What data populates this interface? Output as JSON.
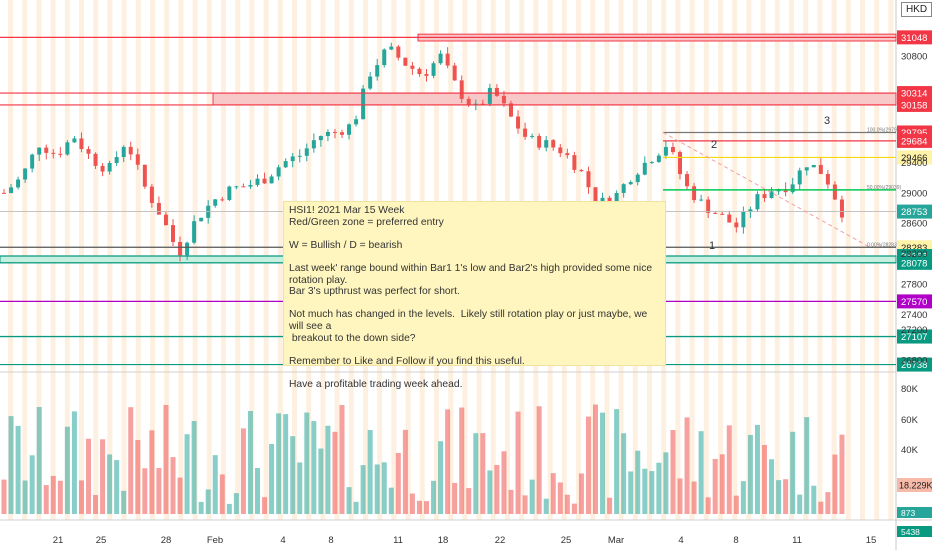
{
  "currency": "HKD",
  "note": {
    "lines": [
      "HSI1! 2021 Mar 15 Week",
      "Red/Green zone = preferred entry",
      "",
      "W = Bullish / D = bearish",
      "",
      "Last week' range bound within Bar1 1's low and Bar2's high provided some nice rotation play.",
      "Bar 3's upthrust was perfect for short.",
      "",
      "Not much has changed in the levels.  Likely still rotation play or just maybe, we will see a",
      " breakout to the down side?",
      "",
      "Remember to Like and Follow if you find this useful.",
      "",
      "Have a profitable trading week ahead."
    ]
  },
  "colors": {
    "up": "#26a69a",
    "down": "#ef5350",
    "session_band": "#fde3c8",
    "note_bg": "#fff6bf",
    "red_level": "#f23645",
    "green_level": "#089981",
    "yellow_level": "#f5d90a",
    "purple_level": "#b000c8"
  },
  "chart_data": {
    "type": "candlestick",
    "symbol": "HSI1!",
    "y_axis": {
      "ticks": [
        30800,
        29400,
        29000,
        28600,
        28200,
        27800,
        27400,
        27200,
        26800
      ],
      "range": [
        26640,
        31540
      ]
    },
    "volume_axis": {
      "ticks": [
        "80K",
        "60K",
        "40K"
      ],
      "value_label": "18.229K",
      "small_labels": [
        "873",
        "5438"
      ]
    },
    "x_axis": {
      "ticks": [
        "21",
        "25",
        "28",
        "Feb",
        "4",
        "8",
        "11",
        "18",
        "22",
        "25",
        "Mar",
        "4",
        "8",
        "11",
        "15"
      ]
    },
    "price_levels": [
      {
        "value": 31048,
        "label": "31048",
        "kind": "resistance"
      },
      {
        "value": 30314,
        "label": "30314",
        "kind": "resistance"
      },
      {
        "value": 30158,
        "label": "30158",
        "kind": "resistance"
      },
      {
        "value": 29795,
        "label": "29795",
        "kind": "range"
      },
      {
        "value": 29684,
        "label": "29684",
        "kind": "resistance"
      },
      {
        "value": 29466,
        "label": "29466",
        "kind": "level"
      },
      {
        "value": 28753,
        "label": "28753",
        "kind": "last"
      },
      {
        "value": 28283,
        "label": "28283",
        "kind": "level"
      },
      {
        "value": 28168,
        "label": "28168",
        "kind": "support"
      },
      {
        "value": 28078,
        "label": "28078",
        "kind": "support"
      },
      {
        "value": 27570,
        "label": "27570",
        "kind": "level"
      },
      {
        "value": 27108,
        "label": "27108",
        "kind": "support"
      },
      {
        "value": 27107,
        "label": "27107",
        "kind": "support"
      },
      {
        "value": 26738,
        "label": "26738",
        "kind": "support"
      }
    ],
    "fib_labels": [
      "100.0%(29795)",
      "50.00%(29039)",
      "0.00%(28283)"
    ],
    "swing_labels": [
      {
        "text": "1",
        "bar": 5
      },
      {
        "text": "2",
        "bar": 6
      },
      {
        "text": "3",
        "bar": 7
      }
    ],
    "price_path": [
      29000,
      29200,
      29650,
      29500,
      29750,
      29450,
      29300,
      29700,
      29100,
      28700,
      28200,
      28650,
      28900,
      29050,
      29100,
      29200,
      29400,
      29500,
      29750,
      29800,
      29900,
      30600,
      30900,
      30700,
      30550,
      30800,
      30350,
      30100,
      30350,
      30000,
      29700,
      29650,
      29550,
      29300,
      28850,
      28950,
      29250,
      29450,
      29650,
      29100,
      28850,
      28700,
      28550,
      28900,
      29050,
      29100,
      29400,
      29250,
      28750
    ]
  }
}
